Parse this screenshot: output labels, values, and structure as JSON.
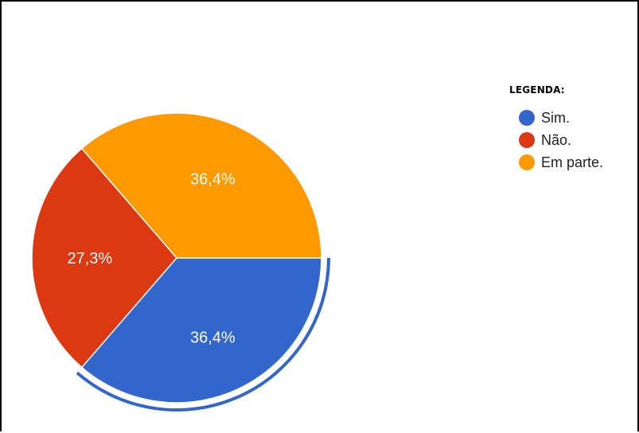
{
  "chart_data": {
    "type": "pie",
    "legend_title": "LEGENDA:",
    "legend_position": "right",
    "start_angle_deg": 90,
    "highlighted_slice": 0,
    "slices": [
      {
        "label": "Sim.",
        "value": 36.4,
        "display": "36,4%",
        "color": "#3366cc"
      },
      {
        "label": "Não.",
        "value": 27.3,
        "display": "27,3%",
        "color": "#dc3912"
      },
      {
        "label": "Em parte.",
        "value": 36.4,
        "display": "36,4%",
        "color": "#ff9900"
      }
    ]
  }
}
